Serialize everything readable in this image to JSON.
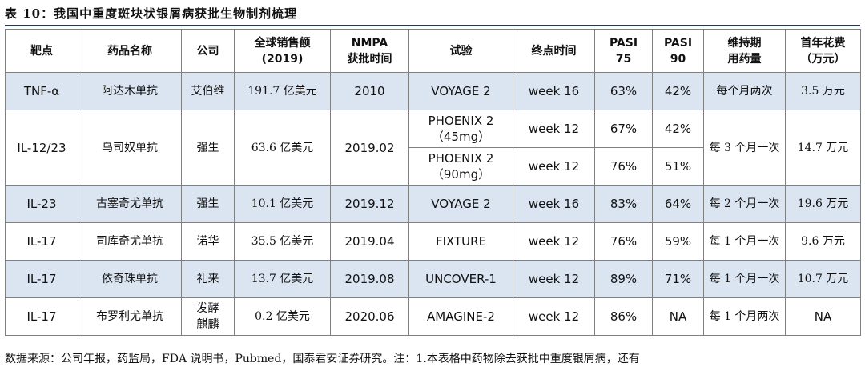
{
  "title": "表 10：我国中重度斑块状银屑病获批生物制剂梳理",
  "headers": {
    "target": "靶点",
    "drug": "药品名称",
    "company": "公司",
    "sales_l1": "全球销售额",
    "sales_l2": "(2019)",
    "nmpa_l1": "NMPA",
    "nmpa_l2": "获批时间",
    "trial": "试验",
    "endpoint": "终点时间",
    "pasi75_l1": "PASI",
    "pasi75_l2": "75",
    "pasi90_l1": "PASI",
    "pasi90_l2": "90",
    "dose_l1": "维持期",
    "dose_l2": "用药量",
    "cost_l1": "首年花费",
    "cost_l2": "（万元）"
  },
  "rows": [
    {
      "target": "TNF-α",
      "drug": "阿达木单抗",
      "company": "艾伯维",
      "sales": "191.7 亿美元",
      "nmpa": "2010",
      "trial": "VOYAGE 2",
      "endpoint": "week 16",
      "pasi75": "63%",
      "pasi90": "42%",
      "dose": "每个月两次",
      "cost": "3.5 万元"
    },
    {
      "target": "IL-12/23",
      "drug": "乌司奴单抗",
      "company": "强生",
      "sales": "63.6 亿美元",
      "nmpa": "2019.02",
      "trial_a1": "PHOENIX 2",
      "trial_a2": "（45mg）",
      "endpoint_a": "week 12",
      "pasi75_a": "67%",
      "pasi90_a": "42%",
      "trial_b1": "PHOENIX 2",
      "trial_b2": "（90mg）",
      "endpoint_b": "week 12",
      "pasi75_b": "76%",
      "pasi90_b": "51%",
      "dose": "每 3 个月一次",
      "cost": "14.7 万元"
    },
    {
      "target": "IL-23",
      "drug": "古塞奇尤单抗",
      "company": "强生",
      "sales": "10.1 亿美元",
      "nmpa": "2019.12",
      "trial": "VOYAGE 2",
      "endpoint": "week 16",
      "pasi75": "83%",
      "pasi90": "64%",
      "dose": "每 2 个月一次",
      "cost": "19.6 万元"
    },
    {
      "target": "IL-17",
      "drug": "司库奇尤单抗",
      "company": "诺华",
      "sales": "35.5 亿美元",
      "nmpa": "2019.04",
      "trial": "FIXTURE",
      "endpoint": "week 12",
      "pasi75": "76%",
      "pasi90": "59%",
      "dose": "每 1 个月一次",
      "cost": "9.6 万元"
    },
    {
      "target": "IL-17",
      "drug": "依奇珠单抗",
      "company": "礼来",
      "sales": "13.7 亿美元",
      "nmpa": "2019.08",
      "trial": "UNCOVER-1",
      "endpoint": "week 12",
      "pasi75": "89%",
      "pasi90": "71%",
      "dose": "每 1 个月一次",
      "cost": "10.7 万元"
    },
    {
      "target": "IL-17",
      "drug": "布罗利尤单抗",
      "company_l1": "发酵",
      "company_l2": "麒麟",
      "sales": "0.2 亿美元",
      "nmpa": "2020.06",
      "trial": "AMAGINE-2",
      "endpoint": "week 12",
      "pasi75": "86%",
      "pasi90": "NA",
      "dose": "每 1 个月两次",
      "cost": "NA"
    }
  ],
  "source": "数据来源：公司年报，药监局，FDA 说明书，Pubmed，国泰君安证券研究。注：1.本表格中药物除去获批中重度银屑病，还有"
}
